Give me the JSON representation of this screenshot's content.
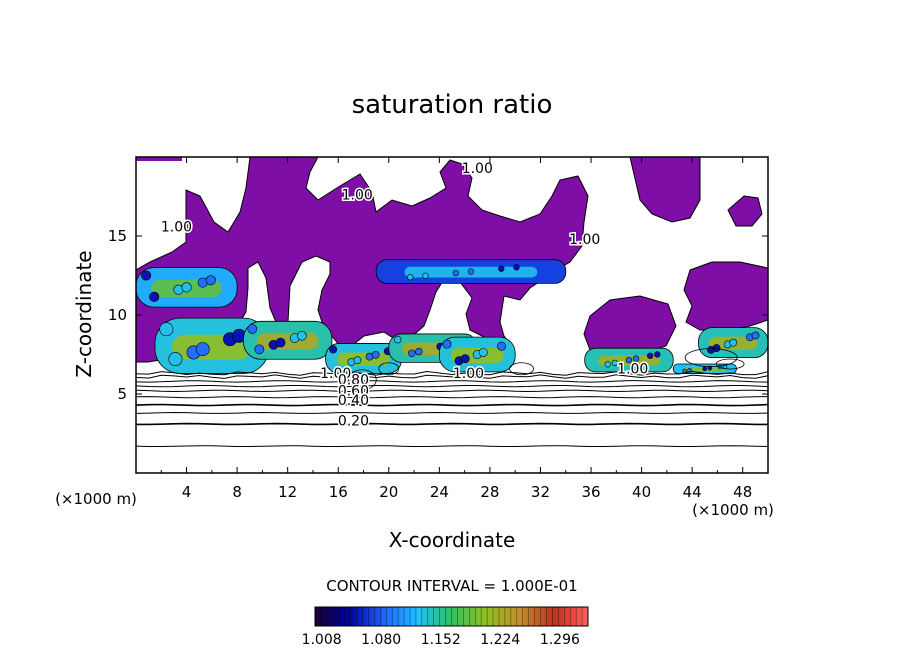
{
  "chart_data": {
    "type": "heatmap",
    "title": "saturation ratio",
    "xlabel": "X-coordinate",
    "ylabel": "Z-coordinate",
    "x_unit": "(×1000 m)",
    "y_unit": "(×1000 m)",
    "xlim": [
      0,
      50
    ],
    "ylim": [
      0,
      20
    ],
    "x_ticks": [
      4,
      8,
      12,
      16,
      20,
      24,
      28,
      32,
      36,
      40,
      44,
      48
    ],
    "y_ticks": [
      5,
      10,
      15
    ],
    "grid": false,
    "contour_interval_label": "CONTOUR INTERVAL = 1.000E-01",
    "contour_interval": 0.1,
    "contour_labels": [
      {
        "text": "1.00",
        "x": 27.0,
        "y": 19.0
      },
      {
        "text": "1.00",
        "x": 17.5,
        "y": 17.3
      },
      {
        "text": "1.00",
        "x": 3.2,
        "y": 15.3
      },
      {
        "text": "1.00",
        "x": 35.5,
        "y": 14.5
      },
      {
        "text": "1.00",
        "x": 15.8,
        "y": 6.0
      },
      {
        "text": "0.80",
        "x": 17.2,
        "y": 5.6
      },
      {
        "text": "0.60",
        "x": 17.2,
        "y": 4.9
      },
      {
        "text": "0.40",
        "x": 17.2,
        "y": 4.3
      },
      {
        "text": "0.20",
        "x": 17.2,
        "y": 3.0
      },
      {
        "text": "1.00",
        "x": 26.3,
        "y": 6.0
      },
      {
        "text": "1.00",
        "x": 39.3,
        "y": 6.3
      }
    ],
    "contour_levels_z": [
      {
        "level": 0.1,
        "z": 1.7
      },
      {
        "level": 0.2,
        "z": 3.1
      },
      {
        "level": 0.3,
        "z": 3.8
      },
      {
        "level": 0.4,
        "z": 4.3
      },
      {
        "level": 0.5,
        "z": 4.8
      },
      {
        "level": 0.6,
        "z": 5.2
      },
      {
        "level": 0.7,
        "z": 5.5
      },
      {
        "level": 0.8,
        "z": 5.8
      },
      {
        "level": 0.9,
        "z": 6.1
      },
      {
        "level": 1.0,
        "z": 6.3
      }
    ],
    "colorbar": {
      "ticks": [
        "1.008",
        "1.080",
        "1.152",
        "1.224",
        "1.296"
      ],
      "min": 1.0,
      "max": 1.33,
      "colors": [
        "#1a0030",
        "#0000a0",
        "#2060ff",
        "#20c0ff",
        "#30c060",
        "#90c020",
        "#c09030",
        "#c03020",
        "#ff6060"
      ]
    },
    "supersaturated_fill": "#7e0ea6",
    "cloud_regions": [
      {
        "x0": 0.0,
        "x1": 8.0,
        "z0": 10.5,
        "z1": 13.0,
        "level": 0.45
      },
      {
        "x0": 1.5,
        "x1": 10.5,
        "z0": 6.3,
        "z1": 9.8,
        "level": 0.55
      },
      {
        "x0": 8.5,
        "x1": 15.5,
        "z0": 7.2,
        "z1": 9.6,
        "level": 0.62
      },
      {
        "x0": 15.0,
        "x1": 21.0,
        "z0": 6.3,
        "z1": 8.2,
        "level": 0.55
      },
      {
        "x0": 20.0,
        "x1": 27.0,
        "z0": 7.0,
        "z1": 8.8,
        "level": 0.62
      },
      {
        "x0": 24.0,
        "x1": 30.0,
        "z0": 6.4,
        "z1": 8.6,
        "level": 0.55
      },
      {
        "x0": 35.5,
        "x1": 42.5,
        "z0": 6.4,
        "z1": 7.9,
        "level": 0.6
      },
      {
        "x0": 42.5,
        "x1": 47.5,
        "z0": 6.3,
        "z1": 6.9,
        "level": 0.5
      },
      {
        "x0": 44.5,
        "x1": 50.0,
        "z0": 7.3,
        "z1": 9.2,
        "level": 0.6
      },
      {
        "x0": 19.0,
        "x1": 34.0,
        "z0": 12.0,
        "z1": 13.5,
        "level": 0.2
      }
    ]
  }
}
